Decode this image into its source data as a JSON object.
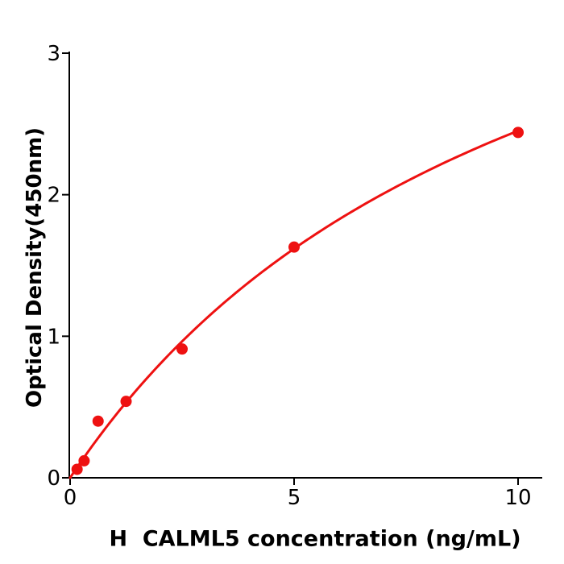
{
  "chart_data": {
    "type": "scatter",
    "subtype": "standard-curve-with-fitted-line",
    "title": "",
    "xlabel": "H  CALML5 concentration (ng/mL)",
    "ylabel": "Optical Density(450nm)",
    "x": [
      0.156,
      0.313,
      0.625,
      1.25,
      2.5,
      5,
      10
    ],
    "y": [
      0.06,
      0.12,
      0.4,
      0.54,
      0.91,
      1.63,
      2.44
    ],
    "x_ticks": [
      0,
      5,
      10
    ],
    "x_tick_labels": [
      "0",
      "5",
      "10"
    ],
    "y_ticks": [
      0,
      1,
      2,
      3
    ],
    "y_tick_labels": [
      "0",
      "1",
      "2",
      "3"
    ],
    "xlim": [
      0,
      10.55
    ],
    "ylim": [
      0,
      3
    ],
    "grid": false,
    "legend": false,
    "has_fit_curve": true,
    "marker_color": "#ee1111",
    "line_color": "#ee1111",
    "axis_color": "#000000",
    "background_color": "#ffffff"
  }
}
